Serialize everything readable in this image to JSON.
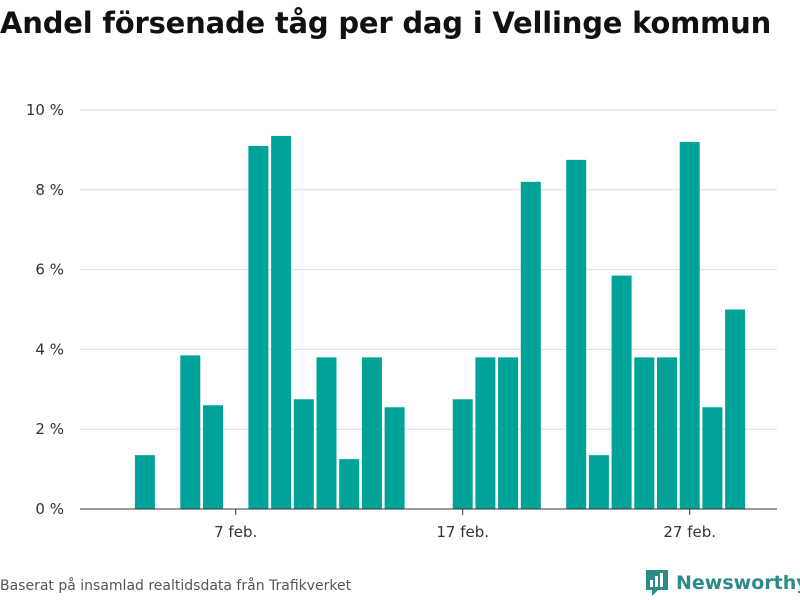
{
  "chart_data": {
    "type": "bar",
    "title": "Andel försenade tåg per dag i Vellinge kommun",
    "xlabel": "",
    "ylabel": "",
    "x_start_label": "1 feb.",
    "x_tick_labels": [
      "7 feb.",
      "17 feb.",
      "27 feb."
    ],
    "x_tick_days": [
      7,
      17,
      27
    ],
    "days": [
      1,
      2,
      3,
      4,
      5,
      6,
      7,
      8,
      9,
      10,
      11,
      12,
      13,
      14,
      15,
      16,
      17,
      18,
      19,
      20,
      21,
      22,
      23,
      24,
      25,
      26,
      27,
      28,
      29
    ],
    "values": [
      0,
      0,
      1.35,
      0,
      3.85,
      2.6,
      0,
      9.1,
      9.35,
      2.75,
      3.8,
      1.25,
      3.8,
      2.55,
      0,
      0,
      2.75,
      3.8,
      3.8,
      8.2,
      0,
      8.75,
      1.35,
      5.85,
      3.8,
      3.8,
      9.2,
      2.55,
      5.0
    ],
    "ylim": [
      0,
      10
    ],
    "y_ticks": [
      0,
      2,
      4,
      6,
      8,
      10
    ],
    "y_tick_labels": [
      "0 %",
      "2 %",
      "4 %",
      "6 %",
      "8 %",
      "10 %"
    ],
    "grid": true,
    "legend": "none",
    "bar_color": "#00a39a"
  },
  "footer": {
    "source": "Baserat på insamlad realtidsdata från Trafikverket",
    "brand": "Newsworthy"
  },
  "colors": {
    "bar": "#00a39a",
    "grid": "#dddddd",
    "axis": "#333333",
    "brand": "#2c8b88"
  }
}
